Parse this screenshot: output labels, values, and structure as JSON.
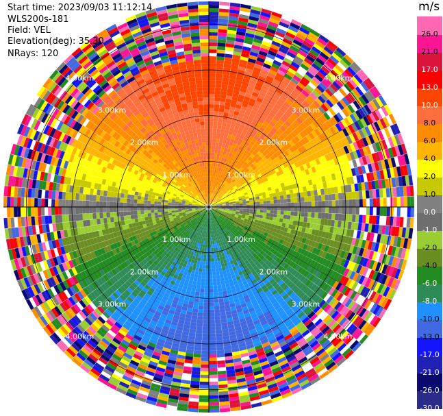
{
  "header": {
    "start_time": "Start time: 2023/09/03 11:12:14",
    "instrument": "WLS200s-181",
    "field": "Field: VEL",
    "elevation": "Elevation(deg): 35.30",
    "nrays": "NRays: 120"
  },
  "colorbar": {
    "unit": "m/s",
    "colors": [
      "#2b2b8c",
      "#0a0a6e",
      "#2020b4",
      "#1414ff",
      "#4169e1",
      "#1e90ff",
      "#2e8b57",
      "#228b22",
      "#6b8e23",
      "#9acd32",
      "#6e6e6e",
      "#808080",
      "#c8c800",
      "#ffff00",
      "#ffb400",
      "#ff8c00",
      "#ff6e3c",
      "#ff4500",
      "#ff0000",
      "#dc143c",
      "#ff1493",
      "#ff69b4"
    ],
    "labels": [
      "-30.0",
      "-26.0",
      "-21.0",
      "-17.0",
      "-13.0",
      "-10.0",
      "-8.0",
      "-6.0",
      "-4.0",
      "-2.0",
      "-1.0",
      "0.0",
      "1.0",
      "2.0",
      "4.0",
      "6.0",
      "8.0",
      "10.0",
      "13.0",
      "17.0",
      "21.0",
      "26.0"
    ]
  },
  "chart_data": {
    "type": "heatmap",
    "description_kind": "polar PPI scan",
    "field": "VEL",
    "units": "m/s",
    "rays": 120,
    "max_range_km": 4.5,
    "range_rings_km": [
      1.0,
      2.0,
      3.0,
      4.0
    ],
    "ring_labels": [
      "1.00km",
      "2.00km",
      "3.00km",
      "4.00km"
    ],
    "velocity_pattern": {
      "north_sector_m_s": 11,
      "east_west_m_s": 0,
      "south_sector_m_s": -11,
      "noise_beyond_km": 3.2
    },
    "colorbar_range": [
      -30.0,
      26.0
    ]
  }
}
